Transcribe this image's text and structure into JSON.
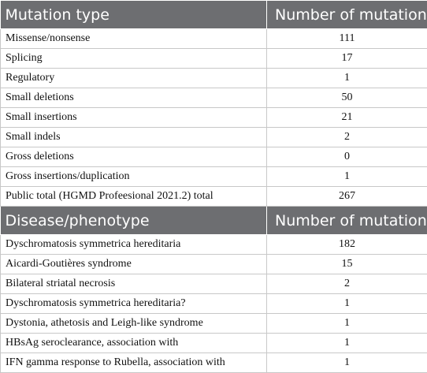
{
  "sections": [
    {
      "header": [
        "Mutation type",
        "Number of mutations"
      ],
      "rows": [
        [
          "Missense/nonsense",
          111
        ],
        [
          "Splicing",
          17
        ],
        [
          "Regulatory",
          1
        ],
        [
          "Small deletions",
          50
        ],
        [
          "Small insertions",
          21
        ],
        [
          "Small indels",
          2
        ],
        [
          "Gross deletions",
          0
        ],
        [
          "Gross insertions/duplication",
          1
        ],
        [
          "Public total (HGMD Profeesional 2021.2) total",
          267
        ]
      ]
    },
    {
      "header": [
        "Disease/phenotype",
        "Number of mutations"
      ],
      "rows": [
        [
          "Dyschromatosis symmetrica hereditaria",
          182
        ],
        [
          "Aicardi-Goutières syndrome",
          15
        ],
        [
          "Bilateral striatal necrosis",
          2
        ],
        [
          "Dyschromatosis symmetrica hereditaria?",
          1
        ],
        [
          "Dystonia, athetosis and Leigh-like syndrome",
          1
        ],
        [
          "HBsAg seroclearance, association with",
          1
        ],
        [
          "IFN gamma response to Rubella, association with",
          1
        ]
      ]
    }
  ]
}
